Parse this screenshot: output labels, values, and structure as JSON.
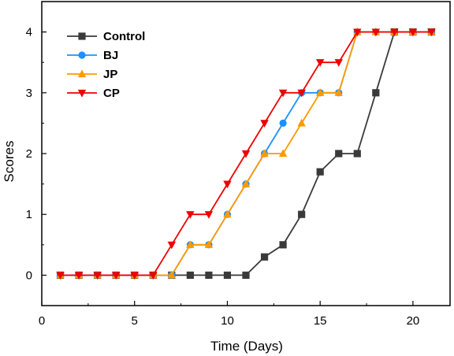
{
  "chart_data": {
    "type": "line",
    "title": "",
    "xlabel": "Time (Days)",
    "ylabel": "Scores",
    "xlim": [
      0,
      22
    ],
    "ylim": [
      -0.5,
      4.5
    ],
    "x_ticks": [
      0,
      5,
      10,
      15,
      20
    ],
    "y_ticks": [
      0,
      1,
      2,
      3,
      4
    ],
    "x_tick_labels": [
      "0",
      "5",
      "10",
      "15",
      "20"
    ],
    "y_tick_labels": [
      "0",
      "1",
      "2",
      "3",
      "4"
    ],
    "grid": false,
    "legend_position": "top-left",
    "series": [
      {
        "name": "Control",
        "color": "#3a3a3a",
        "marker": "square",
        "x": [
          1,
          2,
          3,
          4,
          5,
          6,
          7,
          8,
          9,
          10,
          11,
          12,
          13,
          14,
          15,
          16,
          17,
          18,
          19,
          20,
          21
        ],
        "y": [
          0,
          0,
          0,
          0,
          0,
          0,
          0,
          0,
          0,
          0,
          0,
          0.3,
          0.5,
          1,
          1.7,
          2,
          2,
          3,
          4,
          4,
          4
        ]
      },
      {
        "name": "BJ",
        "color": "#1e90ff",
        "marker": "circle",
        "x": [
          1,
          2,
          3,
          4,
          5,
          6,
          7,
          8,
          9,
          10,
          11,
          12,
          13,
          14,
          15,
          16,
          17,
          18,
          19,
          20,
          21
        ],
        "y": [
          0,
          0,
          0,
          0,
          0,
          0,
          0,
          0.5,
          0.5,
          1,
          1.5,
          2,
          2.5,
          3,
          3,
          3,
          4,
          4,
          4,
          4,
          4
        ]
      },
      {
        "name": "JP",
        "color": "#ff9900",
        "marker": "triangle-up",
        "x": [
          1,
          2,
          3,
          4,
          5,
          6,
          7,
          8,
          9,
          10,
          11,
          12,
          13,
          14,
          15,
          16,
          17,
          18,
          19,
          20,
          21
        ],
        "y": [
          0,
          0,
          0,
          0,
          0,
          0,
          0,
          0.5,
          0.5,
          1,
          1.5,
          2,
          2,
          2.5,
          3,
          3,
          4,
          4,
          4,
          4,
          4
        ]
      },
      {
        "name": "CP",
        "color": "#ee0000",
        "marker": "triangle-down",
        "x": [
          1,
          2,
          3,
          4,
          5,
          6,
          7,
          8,
          9,
          10,
          11,
          12,
          13,
          14,
          15,
          16,
          17,
          18,
          19,
          20,
          21
        ],
        "y": [
          0,
          0,
          0,
          0,
          0,
          0,
          0.5,
          1,
          1,
          1.5,
          2,
          2.5,
          3,
          3,
          3.5,
          3.5,
          4,
          4,
          4,
          4,
          4
        ]
      }
    ]
  }
}
